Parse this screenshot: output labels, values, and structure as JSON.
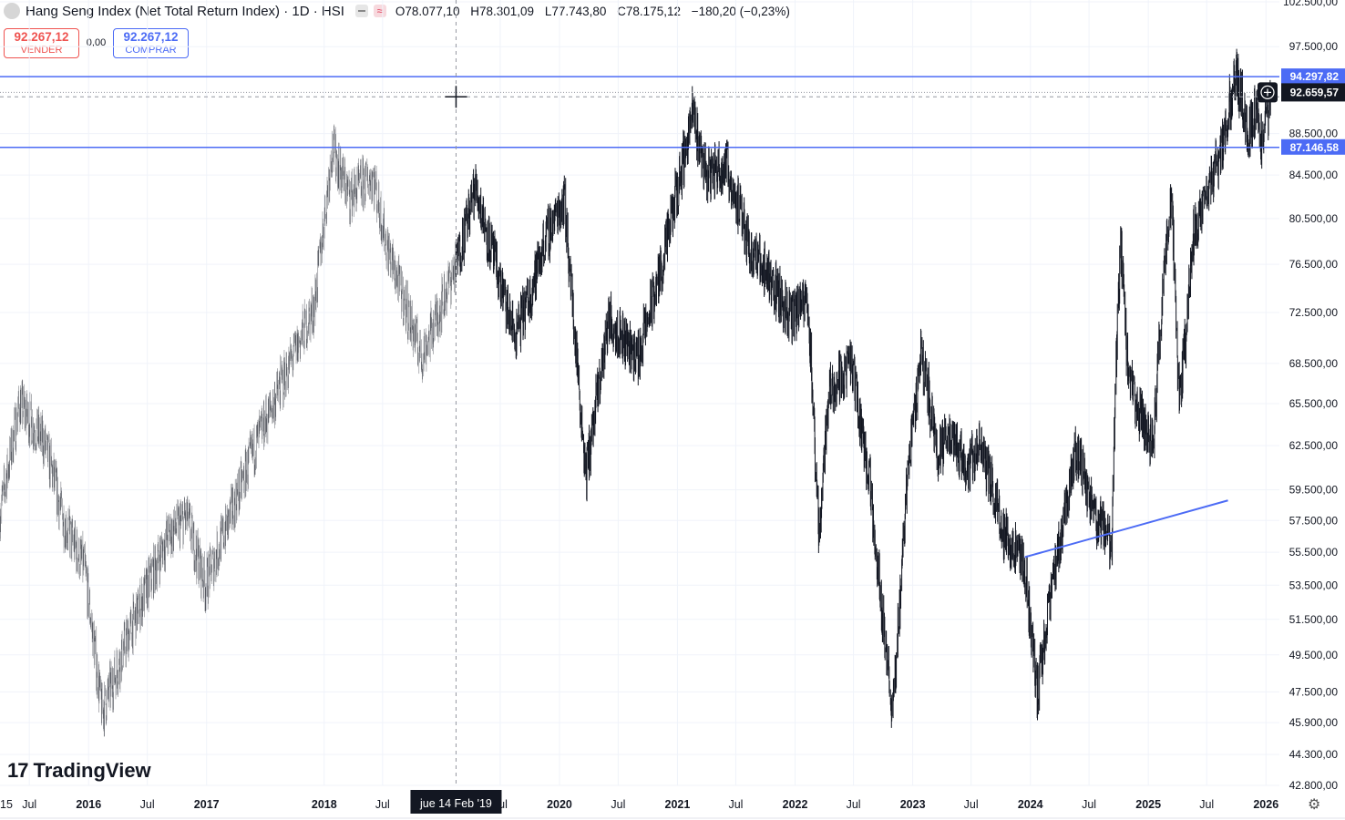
{
  "header": {
    "title": "Hang Seng Index (Net Total Return Index) · 1D · HSI",
    "badge_pink_icon": "≈",
    "ohlc": {
      "open": "O78.077,10",
      "high": "H78.301,09",
      "low": "L77.743,80",
      "close": "C78.175,12",
      "change": "−180,20 (−0,23%)"
    }
  },
  "trade": {
    "sell_price": "92.267,12",
    "sell_label": "VENDER",
    "spread": "0,00",
    "buy_price": "92.267,12",
    "buy_label": "COMPRAR"
  },
  "colors": {
    "line_blue": "#4c6bf5",
    "candle": "#131722",
    "grid": "#f0f3fa",
    "price_tag_dark": "#131722",
    "sell_red": "#ef5350"
  },
  "icons": {
    "logo": "tradingview-logo",
    "settings": "gear-icon",
    "add_alert": "plus-circle-icon",
    "crosshair": "crosshair-icon"
  },
  "crosshair_date_label": "jue 14 Feb '19",
  "logo_text": "TradingView",
  "chart_data": {
    "type": "candlestick",
    "symbol": "HSI",
    "interval": "1D",
    "y_scale": "log",
    "ylim": [
      42800,
      102500
    ],
    "xlim": [
      "2015-04-01",
      "2026-01-20"
    ],
    "y_ticks": [
      {
        "value": 102500,
        "label": "102.500,00"
      },
      {
        "value": 97500,
        "label": "97.500,00"
      },
      {
        "value": 88500,
        "label": "88.500,00"
      },
      {
        "value": 84500,
        "label": "84.500,00"
      },
      {
        "value": 80500,
        "label": "80.500,00"
      },
      {
        "value": 76500,
        "label": "76.500,00"
      },
      {
        "value": 72500,
        "label": "72.500,00"
      },
      {
        "value": 68500,
        "label": "68.500,00"
      },
      {
        "value": 65500,
        "label": "65.500,00"
      },
      {
        "value": 62500,
        "label": "62.500,00"
      },
      {
        "value": 59500,
        "label": "59.500,00"
      },
      {
        "value": 57500,
        "label": "57.500,00"
      },
      {
        "value": 55500,
        "label": "55.500,00"
      },
      {
        "value": 53500,
        "label": "53.500,00"
      },
      {
        "value": 51500,
        "label": "51.500,00"
      },
      {
        "value": 49500,
        "label": "49.500,00"
      },
      {
        "value": 47500,
        "label": "47.500,00"
      },
      {
        "value": 45900,
        "label": "45.900,00"
      },
      {
        "value": 44300,
        "label": "44.300,00"
      },
      {
        "value": 42800,
        "label": "42.800,00"
      }
    ],
    "x_ticks": [
      {
        "date": "2015-04-01",
        "label": "15"
      },
      {
        "date": "2015-07-01",
        "label": "Jul"
      },
      {
        "date": "2016-01-01",
        "label": "2016"
      },
      {
        "date": "2016-07-01",
        "label": "Jul"
      },
      {
        "date": "2017-01-01",
        "label": "2017"
      },
      {
        "date": "2018-01-01",
        "label": "2018"
      },
      {
        "date": "2018-07-01",
        "label": "Jul"
      },
      {
        "date": "2019-07-01",
        "label": "Jul"
      },
      {
        "date": "2020-01-01",
        "label": "2020"
      },
      {
        "date": "2020-07-01",
        "label": "Jul"
      },
      {
        "date": "2021-01-01",
        "label": "2021"
      },
      {
        "date": "2021-07-01",
        "label": "Jul"
      },
      {
        "date": "2022-01-01",
        "label": "2022"
      },
      {
        "date": "2022-07-01",
        "label": "Jul"
      },
      {
        "date": "2023-01-01",
        "label": "2023"
      },
      {
        "date": "2023-07-01",
        "label": "Jul"
      },
      {
        "date": "2024-01-01",
        "label": "2024"
      },
      {
        "date": "2024-07-01",
        "label": "Jul"
      },
      {
        "date": "2025-01-01",
        "label": "2025"
      },
      {
        "date": "2025-07-01",
        "label": "Jul"
      },
      {
        "date": "2026-01-01",
        "label": "2026"
      }
    ],
    "close_path": [
      {
        "date": "2015-04-01",
        "value": 58000
      },
      {
        "date": "2015-06-01",
        "value": 65500
      },
      {
        "date": "2015-08-20",
        "value": 62500
      },
      {
        "date": "2015-10-15",
        "value": 57500
      },
      {
        "date": "2015-12-20",
        "value": 54500
      },
      {
        "date": "2016-02-12",
        "value": 46400
      },
      {
        "date": "2016-05-01",
        "value": 50500
      },
      {
        "date": "2016-09-01",
        "value": 56500
      },
      {
        "date": "2016-11-01",
        "value": 57700
      },
      {
        "date": "2016-12-28",
        "value": 53500
      },
      {
        "date": "2017-06-01",
        "value": 62500
      },
      {
        "date": "2017-12-01",
        "value": 73000
      },
      {
        "date": "2018-01-26",
        "value": 87200
      },
      {
        "date": "2018-03-20",
        "value": 82500
      },
      {
        "date": "2018-06-01",
        "value": 84500
      },
      {
        "date": "2018-07-15",
        "value": 78000
      },
      {
        "date": "2018-10-30",
        "value": 69000
      },
      {
        "date": "2019-02-14",
        "value": 76500
      },
      {
        "date": "2019-04-15",
        "value": 83500
      },
      {
        "date": "2019-06-01",
        "value": 78000
      },
      {
        "date": "2019-08-15",
        "value": 70500
      },
      {
        "date": "2019-10-01",
        "value": 74000
      },
      {
        "date": "2019-11-15",
        "value": 78500
      },
      {
        "date": "2020-01-15",
        "value": 82500
      },
      {
        "date": "2020-03-23",
        "value": 60500
      },
      {
        "date": "2020-06-01",
        "value": 72000
      },
      {
        "date": "2020-09-01",
        "value": 69000
      },
      {
        "date": "2020-11-15",
        "value": 76500
      },
      {
        "date": "2021-02-17",
        "value": 90500
      },
      {
        "date": "2021-04-01",
        "value": 84500
      },
      {
        "date": "2021-06-01",
        "value": 85500
      },
      {
        "date": "2021-08-20",
        "value": 77500
      },
      {
        "date": "2021-10-01",
        "value": 76000
      },
      {
        "date": "2021-12-20",
        "value": 72000
      },
      {
        "date": "2022-02-10",
        "value": 73500
      },
      {
        "date": "2022-03-15",
        "value": 56500
      },
      {
        "date": "2022-04-15",
        "value": 66500
      },
      {
        "date": "2022-06-25",
        "value": 68500
      },
      {
        "date": "2022-08-20",
        "value": 60000
      },
      {
        "date": "2022-10-31",
        "value": 46200
      },
      {
        "date": "2022-12-15",
        "value": 60500
      },
      {
        "date": "2023-01-27",
        "value": 69500
      },
      {
        "date": "2023-03-20",
        "value": 62000
      },
      {
        "date": "2023-05-01",
        "value": 63500
      },
      {
        "date": "2023-06-15",
        "value": 61000
      },
      {
        "date": "2023-08-01",
        "value": 62500
      },
      {
        "date": "2023-10-15",
        "value": 56500
      },
      {
        "date": "2023-12-15",
        "value": 54500
      },
      {
        "date": "2024-01-22",
        "value": 47500
      },
      {
        "date": "2024-03-01",
        "value": 52500
      },
      {
        "date": "2024-05-20",
        "value": 62500
      },
      {
        "date": "2024-07-15",
        "value": 58000
      },
      {
        "date": "2024-09-10",
        "value": 56000
      },
      {
        "date": "2024-09-25",
        "value": 70500
      },
      {
        "date": "2024-10-08",
        "value": 78000
      },
      {
        "date": "2024-11-01",
        "value": 67000
      },
      {
        "date": "2025-01-13",
        "value": 62500
      },
      {
        "date": "2025-02-20",
        "value": 76500
      },
      {
        "date": "2025-03-15",
        "value": 82500
      },
      {
        "date": "2025-04-07",
        "value": 65000
      },
      {
        "date": "2025-05-20",
        "value": 79000
      },
      {
        "date": "2025-07-15",
        "value": 84000
      },
      {
        "date": "2025-08-15",
        "value": 87000
      },
      {
        "date": "2025-10-01",
        "value": 95000
      },
      {
        "date": "2025-11-05",
        "value": 88500
      },
      {
        "date": "2025-12-05",
        "value": 91500
      },
      {
        "date": "2025-12-20",
        "value": 87000
      },
      {
        "date": "2026-01-15",
        "value": 92659.57
      }
    ],
    "horizontal_lines": [
      {
        "value": 94297.82,
        "label": "94.297,82"
      },
      {
        "value": 87146.58,
        "label": "87.146,58"
      }
    ],
    "trend_line": {
      "start": {
        "date": "2023-12-15",
        "value": 55200
      },
      "end": {
        "date": "2025-09-05",
        "value": 58800
      }
    },
    "last_price": {
      "value": 92659.57,
      "label": "92.659,57"
    },
    "crosshair": {
      "date": "2019-02-14",
      "value": 92200
    }
  }
}
